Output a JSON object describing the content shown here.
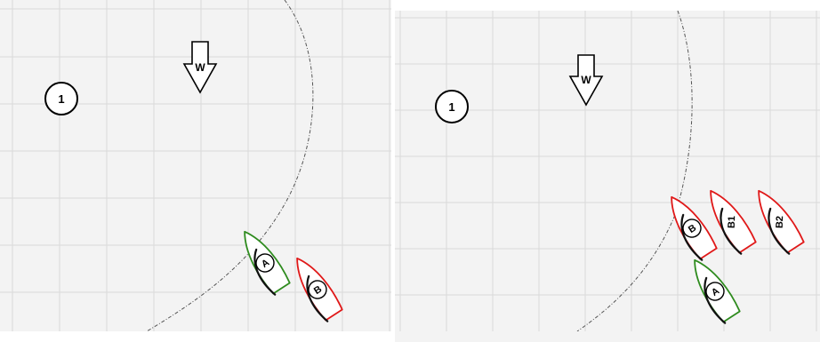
{
  "colors": {
    "background": "#f3f3f3",
    "grid": "#d9d9d9",
    "green_boat": "#2e8b1e",
    "red_boat": "#e01818"
  },
  "panels": [
    {
      "mark": {
        "label": "1"
      },
      "wind": {
        "label": "W",
        "icon": "wind-down-arrow-icon"
      },
      "boats": [
        {
          "label": "A",
          "color": "green"
        },
        {
          "label": "B",
          "color": "red"
        }
      ]
    },
    {
      "mark": {
        "label": "1"
      },
      "wind": {
        "label": "W",
        "icon": "wind-down-arrow-icon"
      },
      "boats": [
        {
          "label": "B",
          "color": "red"
        },
        {
          "label": "B1",
          "color": "red"
        },
        {
          "label": "B2",
          "color": "red"
        },
        {
          "label": "A",
          "color": "green"
        }
      ]
    }
  ]
}
